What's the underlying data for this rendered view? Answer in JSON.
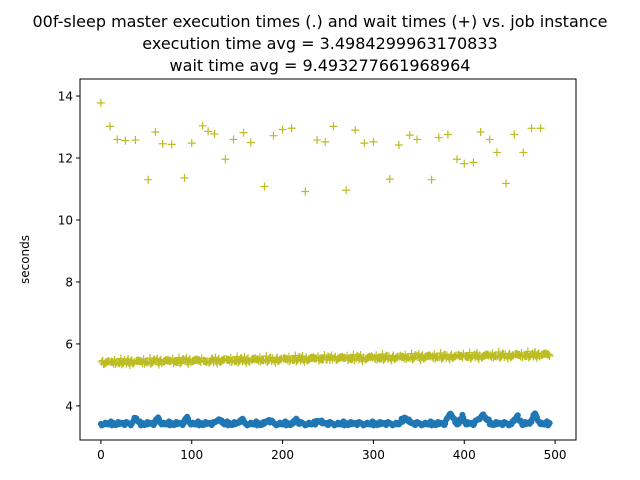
{
  "chart_data": {
    "type": "scatter",
    "title_lines": [
      "00f-sleep master execution times (.) and wait times (+) vs. job instance",
      "execution time avg = 3.4984299963170833",
      "wait time avg = 9.493277661968964"
    ],
    "xlabel": "",
    "ylabel": "seconds",
    "xlim": [
      -23,
      523
    ],
    "ylim": [
      2.9,
      14.55
    ],
    "xticks": [
      0,
      100,
      200,
      300,
      400,
      500
    ],
    "yticks": [
      4,
      6,
      8,
      10,
      12,
      14
    ],
    "grid": false,
    "n_points": 495,
    "series": [
      {
        "marker": ".",
        "color": "#1f77b4",
        "y_pattern": [
          3.42,
          3.4,
          3.38,
          3.44,
          3.41,
          3.37,
          3.45,
          3.43,
          3.4,
          3.46,
          3.39,
          3.42,
          3.48,
          3.41,
          3.44,
          3.4,
          3.38,
          3.47,
          3.43,
          3.45,
          3.41,
          3.39,
          3.44,
          3.5,
          3.42,
          3.46,
          3.4,
          3.43,
          3.37,
          3.45,
          3.41,
          3.48
        ],
        "bumps": [
          {
            "center": 38,
            "amp": 0.2,
            "width": 4
          },
          {
            "center": 63,
            "amp": 0.2,
            "width": 3
          },
          {
            "center": 95,
            "amp": 0.22,
            "width": 3
          },
          {
            "center": 130,
            "amp": 0.18,
            "width": 4
          },
          {
            "center": 155,
            "amp": 0.14,
            "width": 3
          },
          {
            "center": 185,
            "amp": 0.1,
            "width": 5
          },
          {
            "center": 215,
            "amp": 0.14,
            "width": 3
          },
          {
            "center": 240,
            "amp": 0.12,
            "width": 4
          },
          {
            "center": 335,
            "amp": 0.2,
            "width": 6
          },
          {
            "center": 385,
            "amp": 0.38,
            "width": 5
          },
          {
            "center": 398,
            "amp": 0.26,
            "width": 3
          },
          {
            "center": 420,
            "amp": 0.3,
            "width": 8
          },
          {
            "center": 458,
            "amp": 0.24,
            "width": 5
          },
          {
            "center": 478,
            "amp": 0.32,
            "width": 5
          }
        ]
      },
      {
        "marker": "+",
        "color": "#bcbd22",
        "base_pattern": [
          5.3,
          5.33,
          5.36,
          5.4,
          5.35,
          5.38,
          5.45,
          5.42,
          5.36,
          5.48,
          5.4,
          5.44,
          5.37,
          5.41,
          5.46,
          5.39,
          5.34,
          5.43,
          5.5,
          5.38,
          5.42,
          5.35,
          5.47,
          5.4,
          5.44,
          5.37,
          5.52,
          5.41,
          5.36,
          5.45,
          5.39,
          5.43
        ],
        "trend_end": 0.25,
        "periodic_indices": [
          0,
          10,
          18,
          27,
          38,
          52,
          60,
          68,
          78,
          92,
          100,
          112,
          118,
          125,
          137,
          146,
          157,
          165,
          180,
          190,
          200,
          210,
          225,
          238,
          247,
          256,
          270,
          280,
          290,
          300,
          318,
          328,
          340,
          348,
          364,
          372,
          382,
          392,
          400,
          410,
          418,
          428,
          436,
          446,
          455,
          465,
          474,
          484
        ],
        "periodic_values": [
          13.78,
          13.02,
          12.6,
          12.56,
          12.58,
          11.3,
          12.84,
          12.46,
          12.44,
          11.36,
          12.48,
          13.04,
          12.86,
          12.78,
          11.96,
          12.6,
          12.82,
          12.5,
          11.08,
          12.72,
          12.92,
          12.96,
          10.92,
          12.58,
          12.52,
          13.02,
          10.96,
          12.9,
          12.48,
          12.52,
          11.32,
          12.42,
          12.74,
          12.6,
          11.3,
          12.66,
          12.76,
          11.96,
          11.82,
          11.86,
          12.84,
          12.6,
          12.18,
          11.18,
          12.76,
          12.18,
          12.96,
          12.96
        ]
      }
    ]
  }
}
